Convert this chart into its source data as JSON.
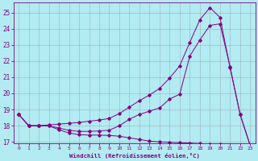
{
  "xlabel": "Windchill (Refroidissement éolien,°C)",
  "background_color": "#b2ebf2",
  "line_color": "#800080",
  "grid_color": "#9999aa",
  "xlim": [
    -0.5,
    23.5
  ],
  "ylim": [
    16.9,
    25.6
  ],
  "yticks": [
    17,
    18,
    19,
    20,
    21,
    22,
    23,
    24,
    25
  ],
  "xticks": [
    0,
    1,
    2,
    3,
    4,
    5,
    6,
    7,
    8,
    9,
    10,
    11,
    12,
    13,
    14,
    15,
    16,
    17,
    18,
    19,
    20,
    21,
    22,
    23
  ],
  "series1_x": [
    0,
    1,
    2,
    3,
    4,
    5,
    6,
    7,
    8,
    9,
    10,
    11,
    12,
    13,
    14,
    15,
    16,
    17,
    18,
    19,
    20,
    21,
    22,
    23
  ],
  "series1_y": [
    18.7,
    18.0,
    18.0,
    18.0,
    17.75,
    17.55,
    17.45,
    17.42,
    17.42,
    17.4,
    17.35,
    17.25,
    17.15,
    17.05,
    17.0,
    16.98,
    16.95,
    16.93,
    16.9,
    16.87,
    16.85,
    16.82,
    16.8,
    16.78
  ],
  "series2_x": [
    0,
    1,
    2,
    3,
    4,
    5,
    6,
    7,
    8,
    9,
    10,
    11,
    12,
    13,
    14,
    15,
    16,
    17,
    18,
    19,
    20,
    21,
    22,
    23
  ],
  "series2_y": [
    18.7,
    18.0,
    18.0,
    18.0,
    17.85,
    17.72,
    17.65,
    17.65,
    17.68,
    17.72,
    18.0,
    18.4,
    18.7,
    18.9,
    19.1,
    19.65,
    19.95,
    22.3,
    23.3,
    24.2,
    24.3,
    21.65,
    18.7,
    16.78
  ],
  "series3_x": [
    0,
    1,
    2,
    3,
    4,
    5,
    6,
    7,
    8,
    9,
    10,
    11,
    12,
    13,
    14,
    15,
    16,
    17,
    18,
    19,
    20,
    21,
    22,
    23
  ],
  "series3_y": [
    18.7,
    18.0,
    18.0,
    18.05,
    18.1,
    18.15,
    18.2,
    18.28,
    18.35,
    18.45,
    18.75,
    19.15,
    19.55,
    19.9,
    20.3,
    20.95,
    21.7,
    23.15,
    24.55,
    25.3,
    24.7,
    21.6,
    18.7,
    16.78
  ]
}
